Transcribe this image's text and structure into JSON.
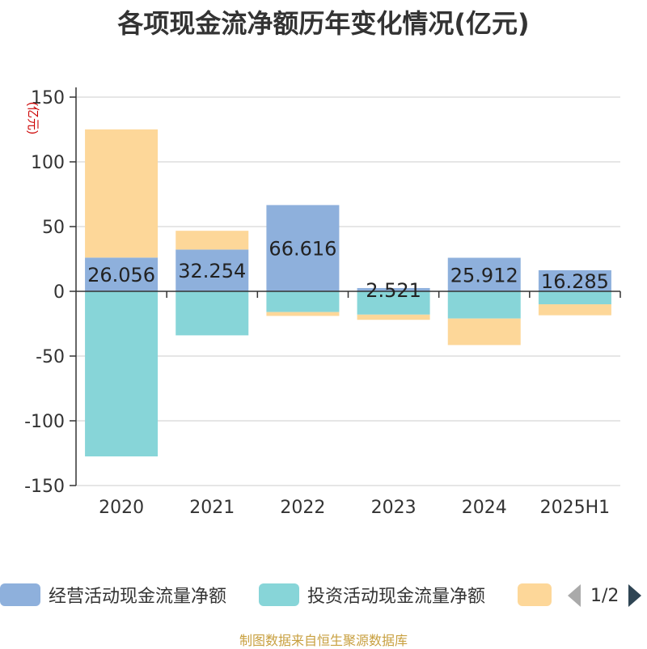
{
  "title": "各项现金流净额历年变化情况(亿元)",
  "source": "制图数据来自恒生聚源数据库",
  "colors": {
    "operating": "#8eb0dc",
    "investing": "#87d5d8",
    "financing": "#fdd799"
  },
  "legend": {
    "items": [
      "经营活动现金流量净额",
      "投资活动现金流量净额",
      ""
    ],
    "page": "1/2"
  },
  "chart_data": {
    "type": "bar",
    "stacked": true,
    "categories": [
      "2020",
      "2021",
      "2022",
      "2023",
      "2024",
      "2025H1"
    ],
    "ylabel": "(亿元)",
    "ylim": [
      -150,
      150
    ],
    "yticks": [
      150,
      100,
      50,
      0,
      -50,
      -100,
      -150
    ],
    "grid": true,
    "legend_position": "bottom",
    "series": [
      {
        "name": "经营活动现金流量净额",
        "values": [
          26.056,
          32.254,
          66.616,
          2.521,
          25.912,
          16.285
        ],
        "labels": [
          "26.056",
          "32.254",
          "66.616",
          "2.521",
          "25.912",
          "16.285"
        ]
      },
      {
        "name": "投资活动现金流量净额",
        "values": [
          -127.5,
          -34,
          -16,
          -18,
          -21,
          -10
        ]
      },
      {
        "values": [
          99,
          14.5,
          -3,
          -4,
          -20.5,
          -8.5
        ]
      }
    ]
  }
}
